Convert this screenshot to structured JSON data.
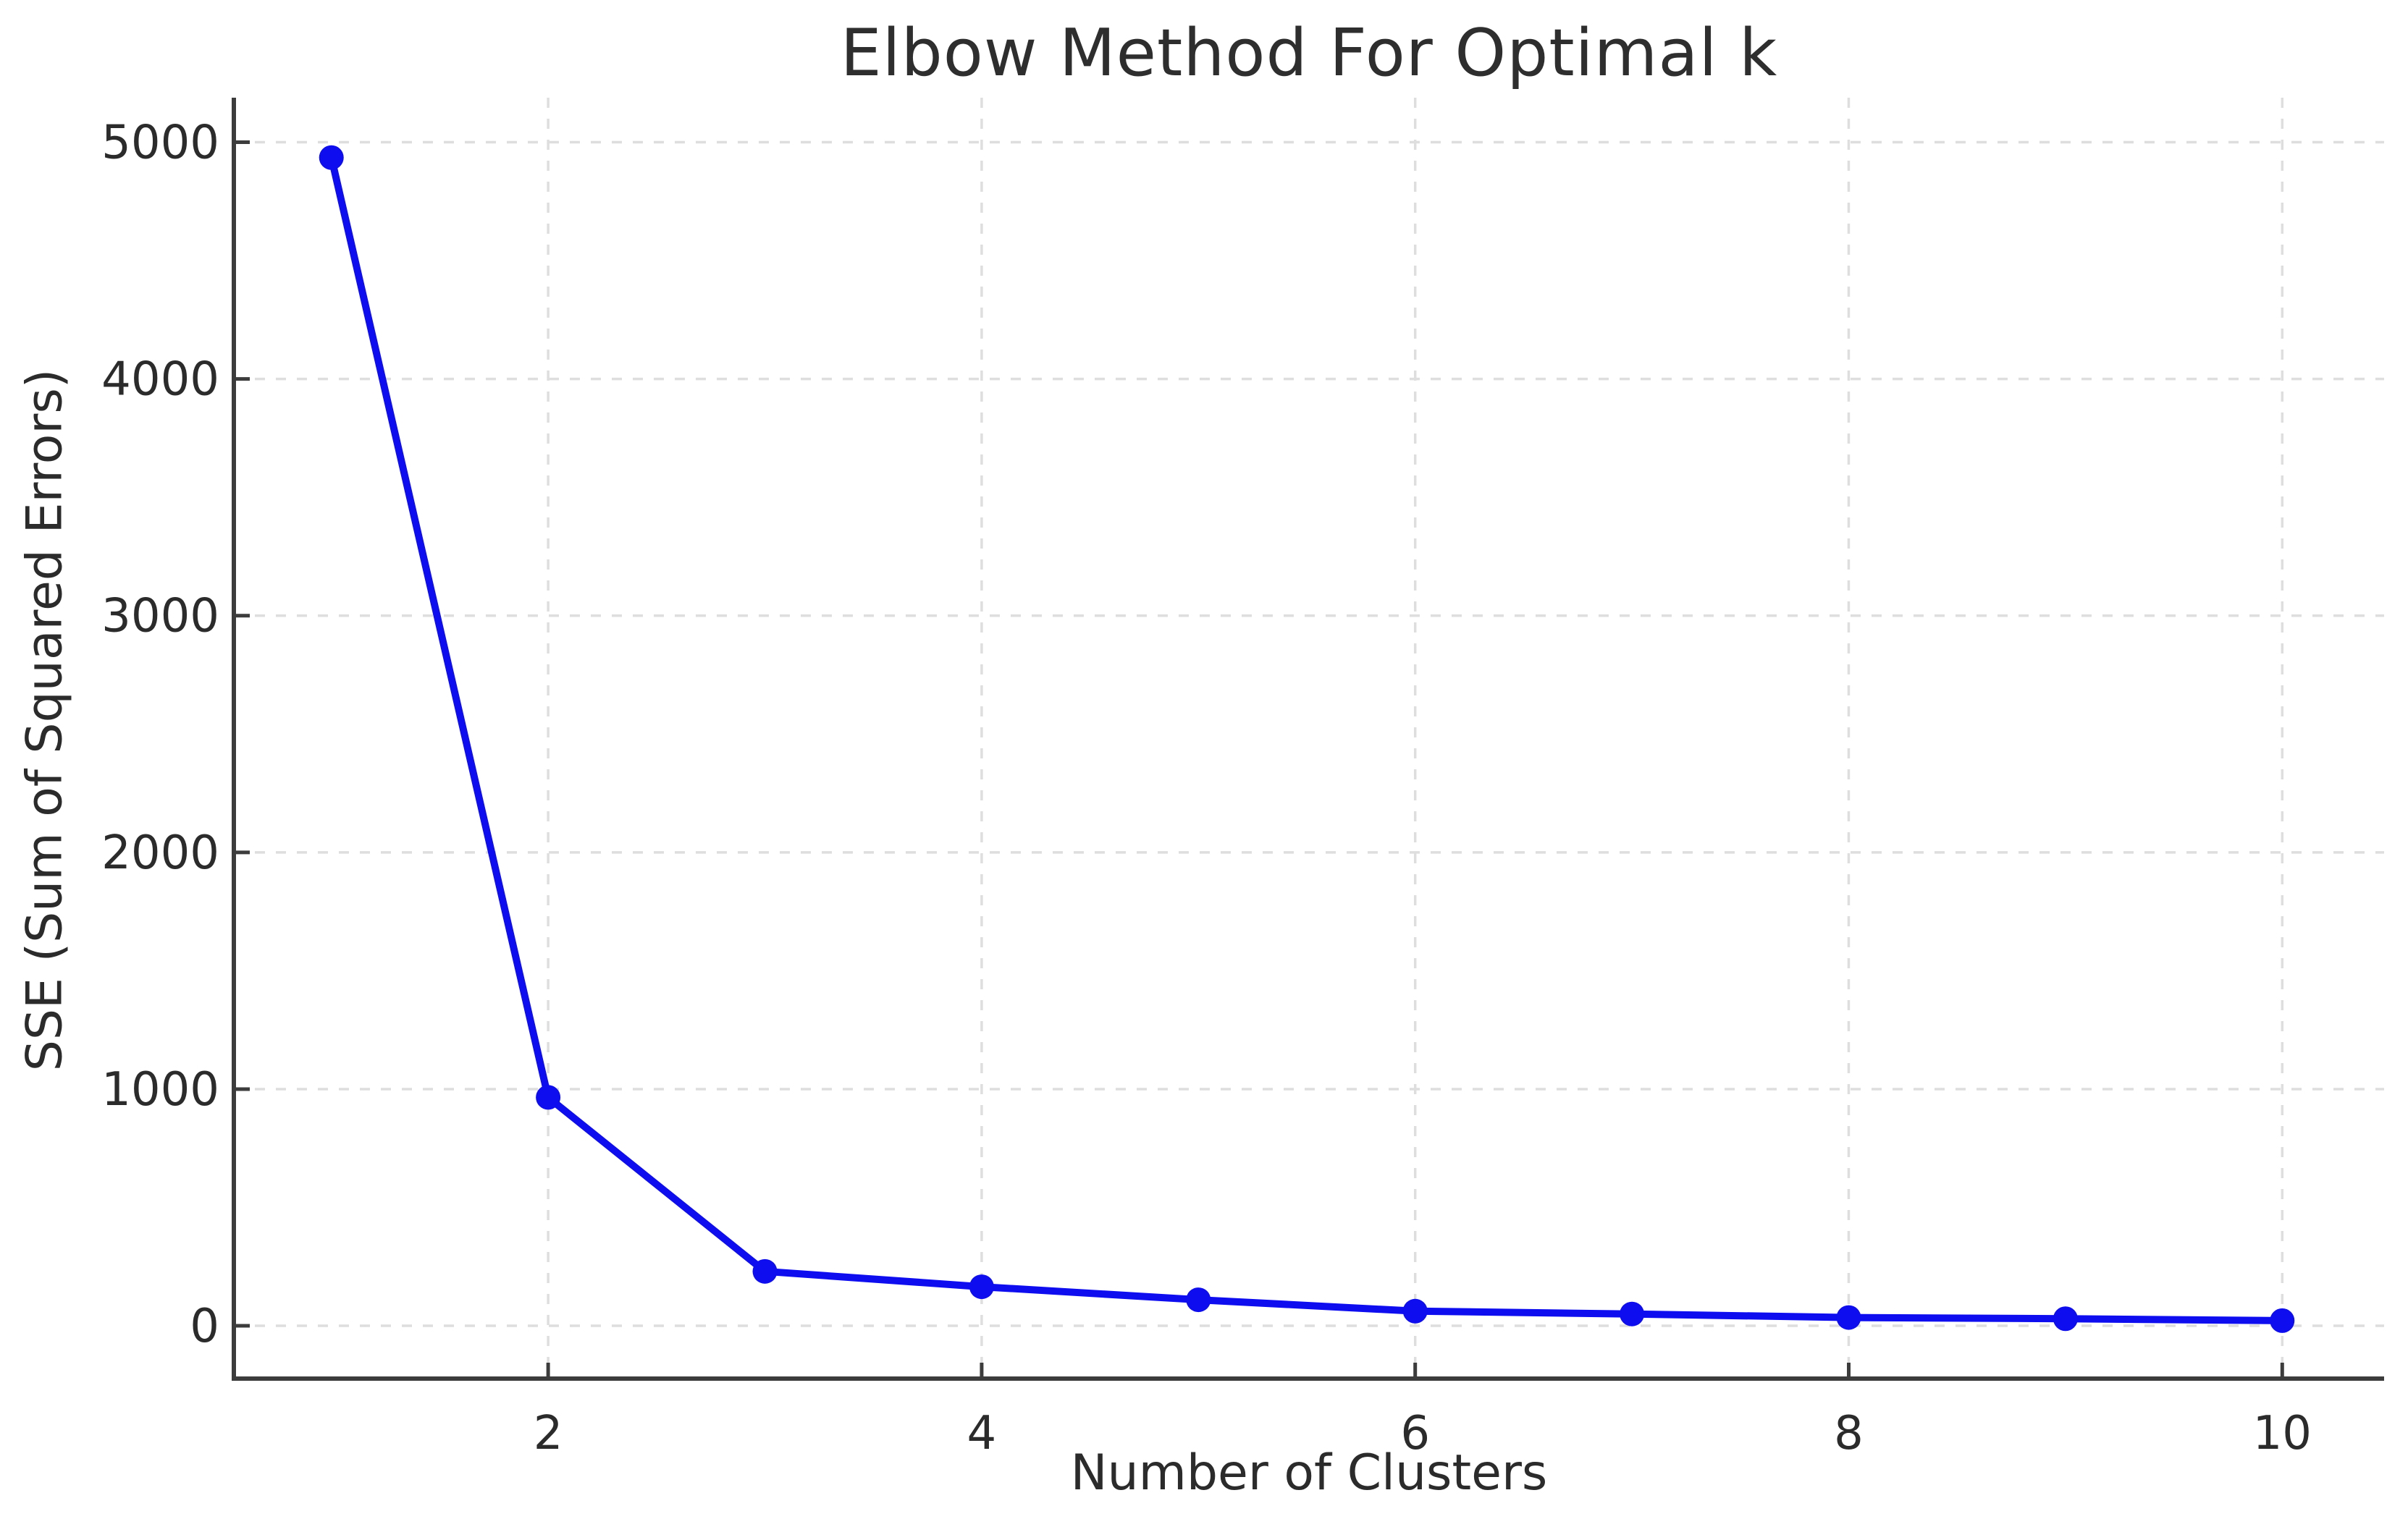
{
  "figure": {
    "background": "#ffffff"
  },
  "chart_data": {
    "type": "line",
    "title": "Elbow Method For Optimal k",
    "xlabel": "Number of Clusters",
    "ylabel": "SSE (Sum of Squared Errors)",
    "x": [
      1,
      2,
      3,
      4,
      5,
      6,
      7,
      8,
      9,
      10
    ],
    "series": [
      {
        "name": "SSE",
        "values": [
          4935,
          965,
          230,
          165,
          110,
          62,
          50,
          35,
          30,
          22
        ]
      }
    ],
    "xticks": {
      "values": [
        2,
        4,
        6,
        8,
        10
      ],
      "labels": [
        "2",
        "4",
        "6",
        "8",
        "10"
      ]
    },
    "yticks": {
      "values": [
        0,
        1000,
        2000,
        3000,
        4000,
        5000
      ],
      "labels": [
        "0",
        "1000",
        "2000",
        "3000",
        "4000",
        "5000"
      ]
    },
    "xlim": [
      0.55,
      10.47
    ],
    "ylim": [
      -223,
      5188
    ],
    "grid": {
      "visible": true,
      "style": "dotted",
      "color": "#dedede"
    },
    "legend": "none",
    "line_color": "#0d0df0",
    "marker": "circle",
    "marker_color": "#0d0df0",
    "spine_color": "#3c3c3c",
    "tick_color": "#3c3c3c",
    "text_color": "#2b2b2b"
  }
}
